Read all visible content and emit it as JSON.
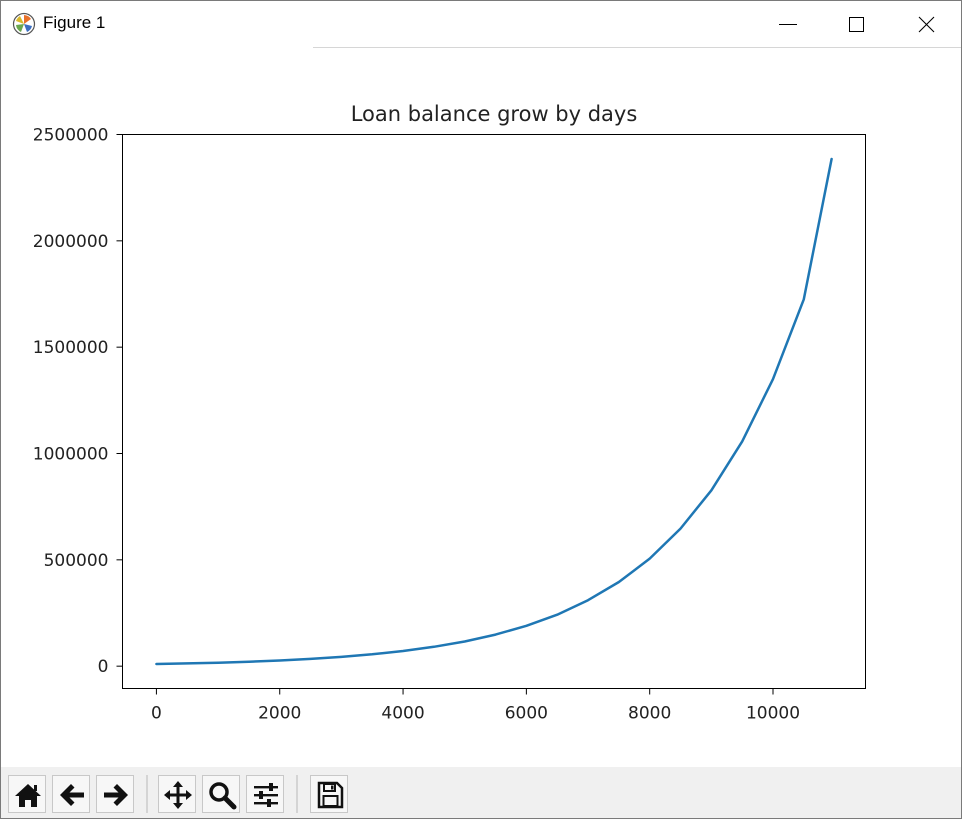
{
  "window": {
    "title": "Figure 1",
    "minimize_icon": "minimize-icon",
    "maximize_icon": "maximize-icon",
    "close_icon": "close-icon"
  },
  "toolbar": {
    "buttons": [
      {
        "name": "home-button",
        "icon": "home-icon"
      },
      {
        "name": "back-button",
        "icon": "back-arrow-icon"
      },
      {
        "name": "forward-button",
        "icon": "forward-arrow-icon"
      },
      {
        "name": "pan-button",
        "icon": "move-arrows-icon"
      },
      {
        "name": "zoom-button",
        "icon": "magnifier-icon"
      },
      {
        "name": "subplots-button",
        "icon": "sliders-icon"
      },
      {
        "name": "save-button",
        "icon": "floppy-disk-icon"
      }
    ]
  },
  "chart_data": {
    "type": "line",
    "title": "Loan balance grow by days",
    "xlabel": "",
    "ylabel": "",
    "xlim": [
      -550,
      11500
    ],
    "ylim": [
      -105000,
      2500000
    ],
    "xticks": [
      0,
      2000,
      4000,
      6000,
      8000,
      10000
    ],
    "xtick_labels": [
      "0",
      "2000",
      "4000",
      "6000",
      "8000",
      "10000"
    ],
    "yticks": [
      0,
      500000,
      1000000,
      1500000,
      2000000,
      2500000
    ],
    "ytick_labels": [
      "0",
      "500000",
      "1000000",
      "1500000",
      "2000000",
      "2500000"
    ],
    "grid": false,
    "legend": "none",
    "series": [
      {
        "color": "#1f77b4",
        "x": [
          0,
          500,
          1000,
          1500,
          2000,
          2500,
          3000,
          3500,
          4000,
          4500,
          5000,
          5500,
          6000,
          6500,
          7000,
          7500,
          8000,
          8500,
          9000,
          9500,
          10000,
          10500,
          10950
        ],
        "y": [
          10000,
          12800,
          16300,
          20900,
          26700,
          34100,
          43600,
          55700,
          71200,
          91000,
          116000,
          148500,
          190000,
          242000,
          310000,
          396000,
          506000,
          647000,
          827000,
          1057000,
          1350000,
          1725000,
          2385000
        ]
      }
    ]
  }
}
